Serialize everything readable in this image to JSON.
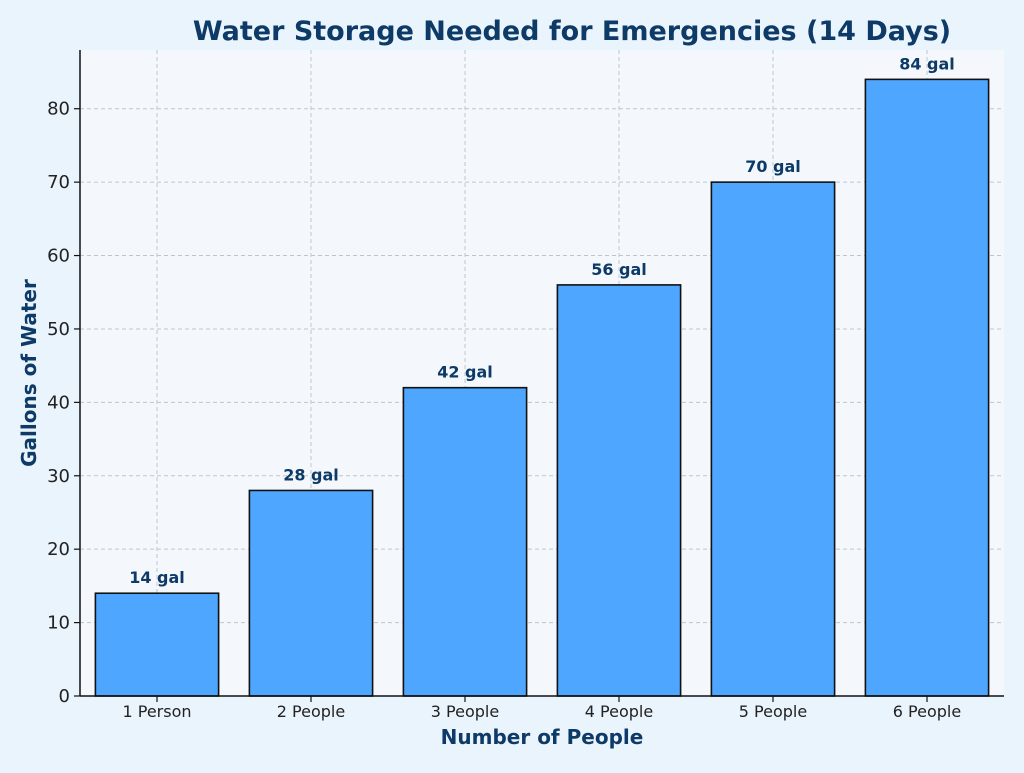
{
  "chart_data": {
    "type": "bar",
    "title": "Water Storage Needed for Emergencies (14 Days)",
    "xlabel": "Number of People",
    "ylabel": "Gallons of Water",
    "categories": [
      "1 Person",
      "2 People",
      "3 People",
      "4 People",
      "5 People",
      "6 People"
    ],
    "values": [
      14,
      28,
      42,
      56,
      70,
      84
    ],
    "data_labels": [
      "14 gal",
      "28 gal",
      "42 gal",
      "56 gal",
      "70 gal",
      "84 gal"
    ],
    "ylim": [
      0,
      88
    ],
    "yticks": [
      0,
      10,
      20,
      30,
      40,
      50,
      60,
      70,
      80
    ],
    "ytick_labels": [
      "0",
      "10",
      "20",
      "30",
      "40",
      "50",
      "60",
      "70",
      "80"
    ],
    "grid": true,
    "colors": {
      "bar_fill": "#4ea6ff",
      "bar_edge": "#111111",
      "title": "#0d3a66",
      "axis_label": "#0d3a66",
      "data_label": "#0d3a66",
      "tick_label": "#222222",
      "plot_background": "#f4f8fd",
      "page_background": "#eaf4fc",
      "grid": "#bcc6cf"
    }
  }
}
